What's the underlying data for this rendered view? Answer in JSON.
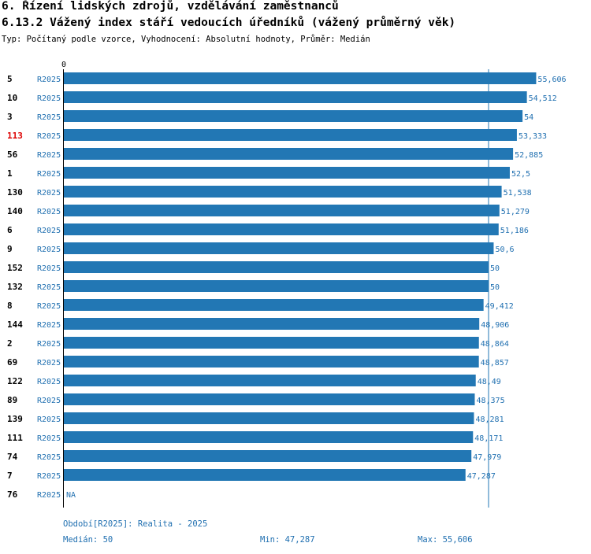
{
  "header": {
    "title": "6. Řízení lidských zdrojů, vzdělávání zaměstnanců",
    "subtitle": "6.13.2 Vážený index stáří vedoucích úředníků (vážený průměrný věk)",
    "meta": "Typ: Počítaný podle vzorce, Vyhodnocení: Absolutní hodnoty, Průměr: Medián"
  },
  "colors": {
    "bar": "#2277b4",
    "value_text": "#1f6fb0",
    "highlight": "#dd0000",
    "label": "#000000",
    "axis": "#000000",
    "median_line": "#2277b4"
  },
  "chart_data": {
    "type": "bar",
    "orientation": "horizontal",
    "axis_zero_label": "0",
    "xlim": [
      0,
      60.1
    ],
    "median": 50,
    "rows": [
      {
        "id": "5",
        "series": "R2025",
        "value": 55.606,
        "label": "55,606",
        "highlight": false
      },
      {
        "id": "10",
        "series": "R2025",
        "value": 54.512,
        "label": "54,512",
        "highlight": false
      },
      {
        "id": "3",
        "series": "R2025",
        "value": 54,
        "label": "54",
        "highlight": false
      },
      {
        "id": "113",
        "series": "R2025",
        "value": 53.333,
        "label": "53,333",
        "highlight": true
      },
      {
        "id": "56",
        "series": "R2025",
        "value": 52.885,
        "label": "52,885",
        "highlight": false
      },
      {
        "id": "1",
        "series": "R2025",
        "value": 52.5,
        "label": "52,5",
        "highlight": false
      },
      {
        "id": "130",
        "series": "R2025",
        "value": 51.538,
        "label": "51,538",
        "highlight": false
      },
      {
        "id": "140",
        "series": "R2025",
        "value": 51.279,
        "label": "51,279",
        "highlight": false
      },
      {
        "id": "6",
        "series": "R2025",
        "value": 51.186,
        "label": "51,186",
        "highlight": false
      },
      {
        "id": "9",
        "series": "R2025",
        "value": 50.6,
        "label": "50,6",
        "highlight": false
      },
      {
        "id": "152",
        "series": "R2025",
        "value": 50,
        "label": "50",
        "highlight": false
      },
      {
        "id": "132",
        "series": "R2025",
        "value": 50,
        "label": "50",
        "highlight": false
      },
      {
        "id": "8",
        "series": "R2025",
        "value": 49.412,
        "label": "49,412",
        "highlight": false
      },
      {
        "id": "144",
        "series": "R2025",
        "value": 48.906,
        "label": "48,906",
        "highlight": false
      },
      {
        "id": "2",
        "series": "R2025",
        "value": 48.864,
        "label": "48,864",
        "highlight": false
      },
      {
        "id": "69",
        "series": "R2025",
        "value": 48.857,
        "label": "48,857",
        "highlight": false
      },
      {
        "id": "122",
        "series": "R2025",
        "value": 48.49,
        "label": "48,49",
        "highlight": false
      },
      {
        "id": "89",
        "series": "R2025",
        "value": 48.375,
        "label": "48,375",
        "highlight": false
      },
      {
        "id": "139",
        "series": "R2025",
        "value": 48.281,
        "label": "48,281",
        "highlight": false
      },
      {
        "id": "111",
        "series": "R2025",
        "value": 48.171,
        "label": "48,171",
        "highlight": false
      },
      {
        "id": "74",
        "series": "R2025",
        "value": 47.979,
        "label": "47,979",
        "highlight": false
      },
      {
        "id": "7",
        "series": "R2025",
        "value": 47.287,
        "label": "47,287",
        "highlight": false
      },
      {
        "id": "76",
        "series": "R2025",
        "value": null,
        "label": "NA",
        "highlight": false
      }
    ]
  },
  "footer": {
    "period": "Období[R2025]: Realita - 2025",
    "median": "Medián: 50",
    "min": "Min: 47,287",
    "max": "Max: 55,606"
  }
}
